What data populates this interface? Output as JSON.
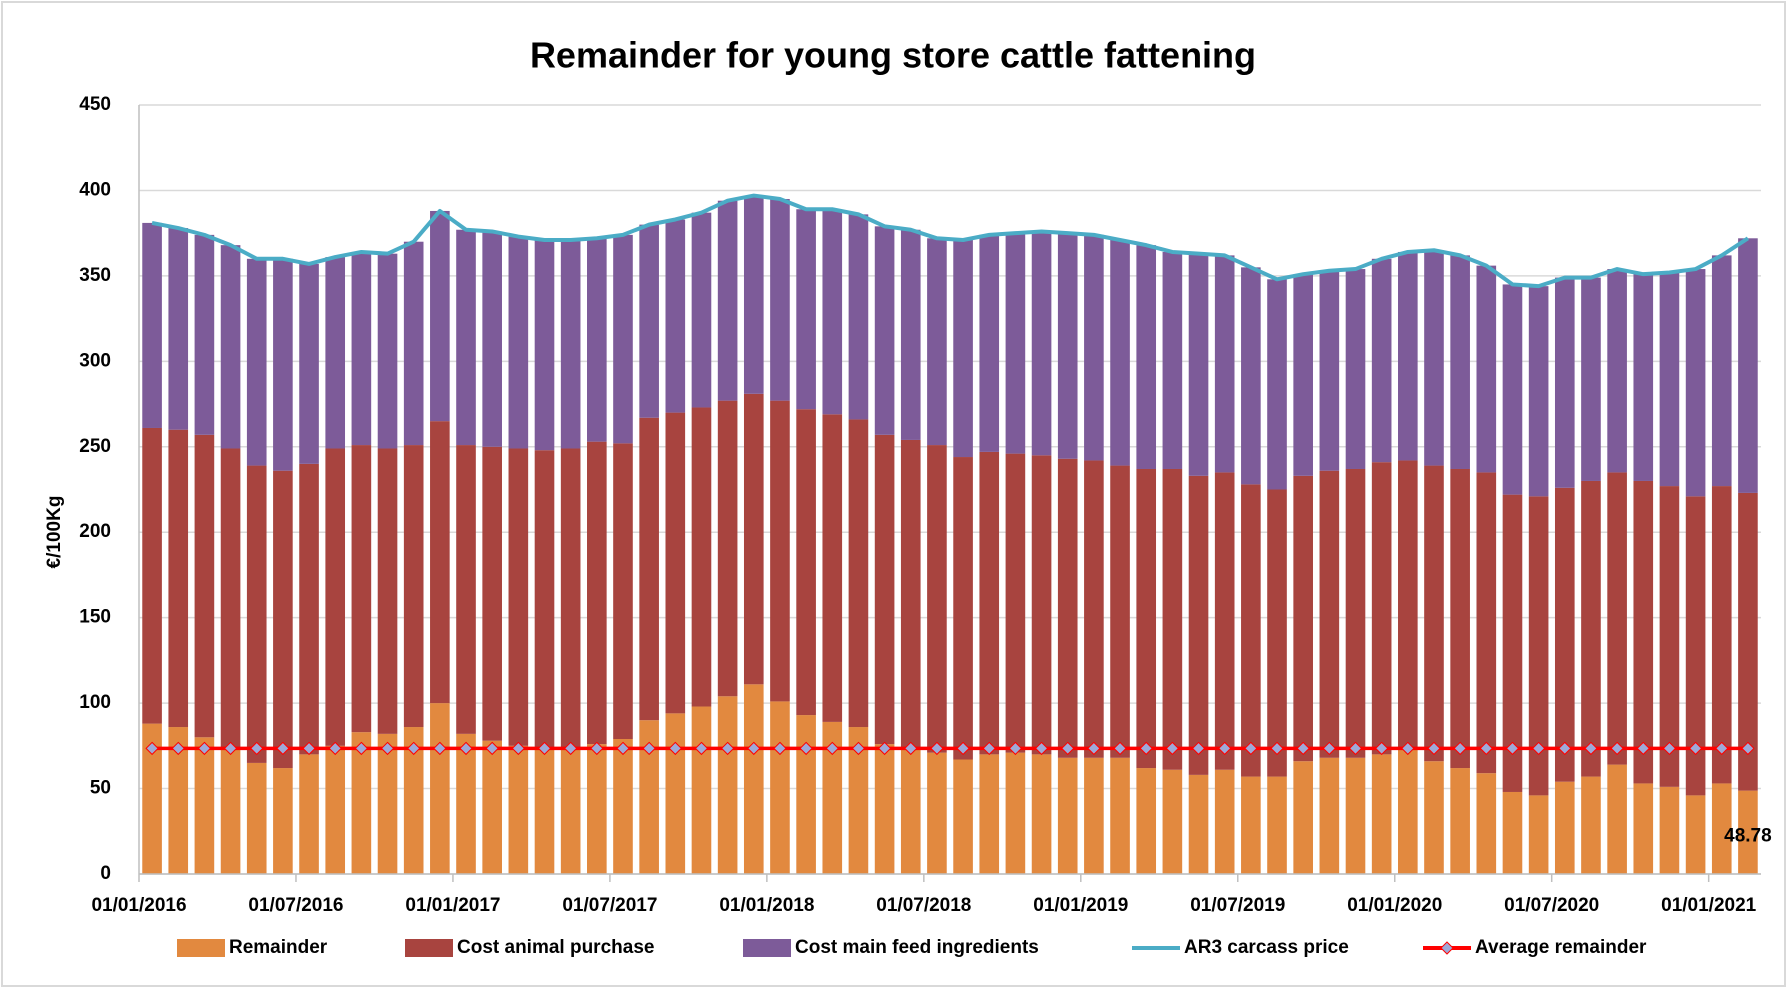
{
  "chart_data": {
    "type": "bar",
    "stacked": true,
    "title": "Remainder for young store cattle fattening",
    "y_label": "€/100Kg",
    "categories": [
      "01/01/2016",
      null,
      null,
      null,
      null,
      null,
      "01/07/2016",
      null,
      null,
      null,
      null,
      null,
      "01/01/2017",
      null,
      null,
      null,
      null,
      null,
      "01/07/2017",
      null,
      null,
      null,
      null,
      null,
      "01/01/2018",
      null,
      null,
      null,
      null,
      null,
      "01/07/2018",
      null,
      null,
      null,
      null,
      null,
      "01/01/2019",
      null,
      null,
      null,
      null,
      null,
      "01/07/2019",
      null,
      null,
      null,
      null,
      null,
      "01/01/2020",
      null,
      null,
      null,
      null,
      null,
      "01/07/2020",
      null,
      null,
      null,
      null,
      null,
      "01/01/2021",
      null
    ],
    "ylim": [
      0,
      450
    ],
    "yticks": [
      0,
      50,
      100,
      150,
      200,
      250,
      300,
      350,
      400,
      450
    ],
    "grid": true,
    "series": [
      {
        "name": "Remainder",
        "type": "bar",
        "color": "#e2893f",
        "values": [
          88,
          86,
          80,
          74,
          65,
          62,
          70,
          75,
          83,
          82,
          86,
          100,
          82,
          78,
          75,
          73,
          73,
          76,
          79,
          90,
          94,
          98,
          104,
          111,
          101,
          93,
          89,
          86,
          76,
          74,
          71,
          67,
          70,
          71,
          70,
          68,
          68,
          68,
          62,
          61,
          58,
          61,
          57,
          57,
          66,
          68,
          68,
          70,
          73,
          66,
          62,
          59,
          48,
          46,
          54,
          57,
          64,
          53,
          51,
          46,
          53,
          48.78
        ]
      },
      {
        "name": "Cost animal purchase",
        "type": "bar",
        "color": "#a8443f",
        "values": [
          173,
          174,
          177,
          175,
          174,
          174,
          170,
          174,
          168,
          167,
          165,
          165,
          169,
          172,
          174,
          175,
          176,
          177,
          173,
          177,
          176,
          175,
          173,
          170,
          176,
          179,
          180,
          180,
          181,
          180,
          180,
          177,
          177,
          175,
          175,
          175,
          174,
          171,
          175,
          176,
          175,
          174,
          171,
          168,
          167,
          168,
          169,
          171,
          169,
          173,
          175,
          176,
          174,
          175,
          172,
          173,
          171,
          177,
          176,
          175,
          174,
          174.22
        ]
      },
      {
        "name": "Cost main feed ingredients",
        "type": "bar",
        "color": "#7d5b99",
        "values": [
          120,
          118,
          117,
          119,
          121,
          124,
          117,
          112,
          113,
          114,
          119,
          123,
          126,
          126,
          124,
          123,
          122,
          119,
          122,
          113,
          113,
          114,
          117,
          116,
          118,
          117,
          120,
          120,
          122,
          123,
          121,
          127,
          127,
          129,
          131,
          132,
          132,
          132,
          131,
          127,
          130,
          127,
          127,
          123,
          118,
          117,
          117,
          119,
          122,
          126,
          125,
          121,
          123,
          123,
          123,
          119,
          119,
          121,
          125,
          133,
          135,
          149
        ]
      },
      {
        "name": "AR3 carcass price",
        "type": "line",
        "color": "#4bacc6",
        "values": [
          381,
          378,
          374,
          368,
          360,
          360,
          357,
          361,
          364,
          363,
          370,
          388,
          377,
          376,
          373,
          371,
          371,
          372,
          374,
          380,
          383,
          387,
          394,
          397,
          395,
          389,
          389,
          386,
          379,
          377,
          372,
          371,
          374,
          375,
          376,
          375,
          374,
          371,
          368,
          364,
          363,
          362,
          355,
          348,
          351,
          353,
          354,
          360,
          364,
          365,
          362,
          356,
          345,
          344,
          349,
          349,
          354,
          351,
          352,
          354,
          362,
          372
        ]
      },
      {
        "name": "Average remainder",
        "type": "line",
        "color": "#ff0000",
        "marker_color": "#9ea9d8",
        "values": [
          73.5,
          73.5,
          73.5,
          73.5,
          73.5,
          73.5,
          73.5,
          73.5,
          73.5,
          73.5,
          73.5,
          73.5,
          73.5,
          73.5,
          73.5,
          73.5,
          73.5,
          73.5,
          73.5,
          73.5,
          73.5,
          73.5,
          73.5,
          73.5,
          73.5,
          73.5,
          73.5,
          73.5,
          73.5,
          73.5,
          73.5,
          73.5,
          73.5,
          73.5,
          73.5,
          73.5,
          73.5,
          73.5,
          73.5,
          73.5,
          73.5,
          73.5,
          73.5,
          73.5,
          73.5,
          73.5,
          73.5,
          73.5,
          73.5,
          73.5,
          73.5,
          73.5,
          73.5,
          73.5,
          73.5,
          73.5,
          73.5,
          73.5,
          73.5,
          73.5,
          73.5,
          73.5
        ]
      }
    ]
  }
}
